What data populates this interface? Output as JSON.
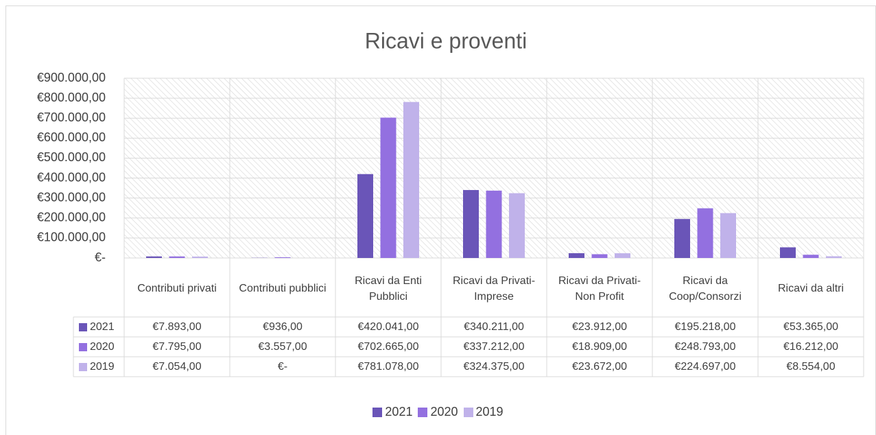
{
  "chart_data": {
    "type": "bar",
    "title": "Ricavi e proventi",
    "categories": [
      "Contributi privati",
      "Contributi pubblici",
      "Ricavi da Enti Pubblici",
      "Ricavi da Privati-Imprese",
      "Ricavi da Privati-Non Profit",
      "Ricavi da Coop/Consorzi",
      "Ricavi da altri"
    ],
    "series": [
      {
        "name": "2021",
        "color": "#6a55b8",
        "values": [
          7893,
          936,
          420041,
          340211,
          23912,
          195218,
          53365
        ],
        "value_labels": [
          "€7.893,00",
          "€936,00",
          "€420.041,00",
          "€340.211,00",
          "€23.912,00",
          "€195.218,00",
          "€53.365,00"
        ]
      },
      {
        "name": "2020",
        "color": "#9370e0",
        "values": [
          7795,
          3557,
          702665,
          337212,
          18909,
          248793,
          16212
        ],
        "value_labels": [
          "€7.795,00",
          "€3.557,00",
          "€702.665,00",
          "€337.212,00",
          "€18.909,00",
          "€248.793,00",
          "€16.212,00"
        ]
      },
      {
        "name": "2019",
        "color": "#c0b2ea",
        "values": [
          7054,
          0,
          781078,
          324375,
          23672,
          224697,
          8554
        ],
        "value_labels": [
          "€7.054,00",
          "€-",
          "€781.078,00",
          "€324.375,00",
          "€23.672,00",
          "€224.697,00",
          "€8.554,00"
        ]
      }
    ],
    "ylim": [
      0,
      900000
    ],
    "yticks": [
      {
        "value": 0,
        "label": "€-"
      },
      {
        "value": 100000,
        "label": "€100.000,00"
      },
      {
        "value": 200000,
        "label": "€200.000,00"
      },
      {
        "value": 300000,
        "label": "€300.000,00"
      },
      {
        "value": 400000,
        "label": "€400.000,00"
      },
      {
        "value": 500000,
        "label": "€500.000,00"
      },
      {
        "value": 600000,
        "label": "€600.000,00"
      },
      {
        "value": 700000,
        "label": "€700.000,00"
      },
      {
        "value": 800000,
        "label": "€800.000,00"
      },
      {
        "value": 900000,
        "label": "€900.000,00"
      }
    ],
    "grid": true,
    "legend": "bottom"
  }
}
